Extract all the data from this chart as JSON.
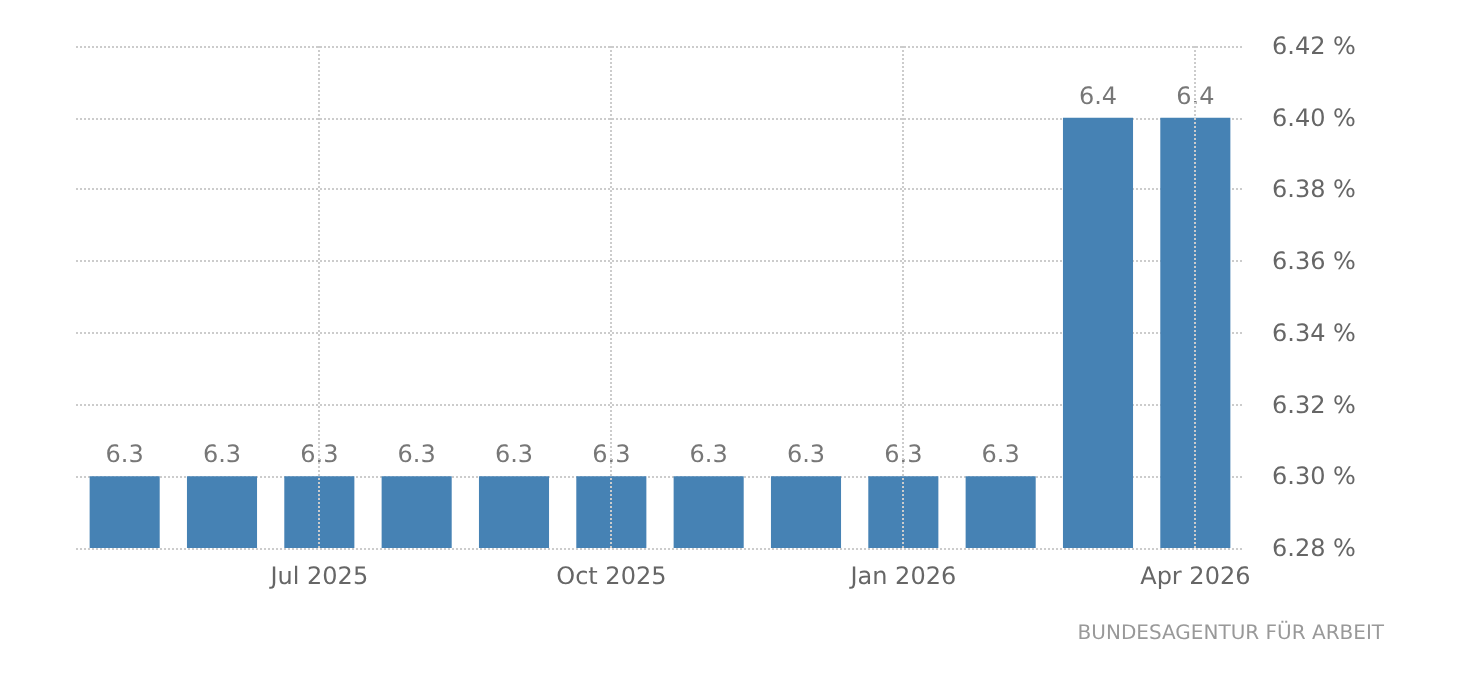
{
  "chart_data": {
    "type": "bar",
    "categories": [
      null,
      null,
      "Jul 2025",
      null,
      null,
      "Oct 2025",
      null,
      null,
      "Jan 2026",
      null,
      null,
      "Apr 2026"
    ],
    "values": [
      6.3,
      6.3,
      6.3,
      6.3,
      6.3,
      6.3,
      6.3,
      6.3,
      6.3,
      6.3,
      6.4,
      6.4
    ],
    "color": "#4682b4",
    "ylim": [
      6.28,
      6.42
    ],
    "yticks": [
      {
        "value": 6.28,
        "label": "6.28 %"
      },
      {
        "value": 6.3,
        "label": "6.30 %"
      },
      {
        "value": 6.32,
        "label": "6.32 %"
      },
      {
        "value": 6.34,
        "label": "6.34 %"
      },
      {
        "value": 6.36,
        "label": "6.36 %"
      },
      {
        "value": 6.38,
        "label": "6.38 %"
      },
      {
        "value": 6.4,
        "label": "6.40 %"
      },
      {
        "value": 6.42,
        "label": "6.42 %"
      }
    ],
    "grid": true,
    "data_labels": true,
    "annotations": [
      "BUNDESAGENTUR FÜR ARBEIT"
    ]
  }
}
